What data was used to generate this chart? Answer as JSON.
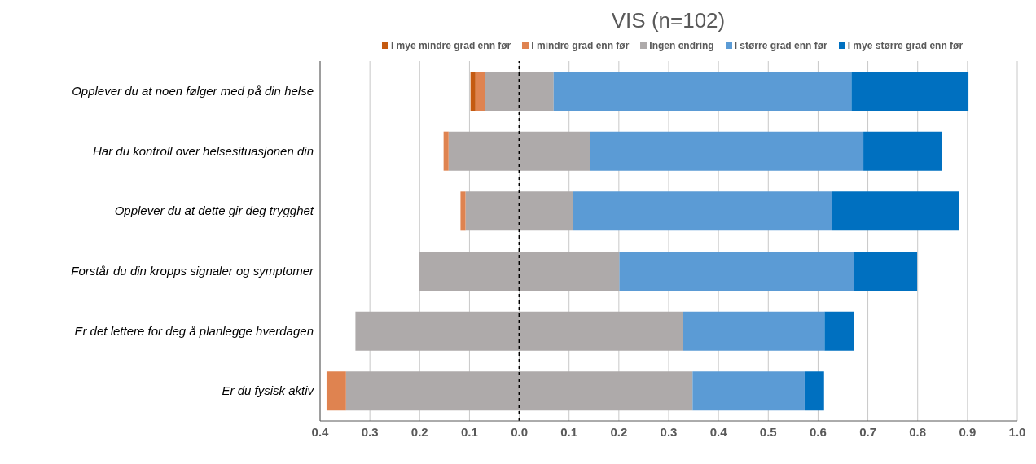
{
  "chart_data": {
    "type": "bar",
    "orientation": "horizontal",
    "stacked": true,
    "title": "VIS (n=102)",
    "categories": [
      "Opplever du at noen følger med på din helse",
      "Har du kontroll over helsesituasjonen din",
      "Opplever du at dette gir deg trygghet",
      "Forstår du din kropps signaler og symptomer",
      "Er det lettere for deg å planlegge hverdagen",
      "Er du fysisk aktiv"
    ],
    "series": [
      {
        "color": "#aeaaaa",
        "values": [
          -0.068,
          -0.142,
          -0.108,
          -0.201,
          -0.329,
          -0.348
        ]
      },
      {
        "name": "Ingen endring",
        "color": "#aeaaaa",
        "values": [
          0.069,
          0.142,
          0.108,
          0.201,
          0.329,
          0.348
        ]
      },
      {
        "name": "I mindre grad enn før",
        "color": "#df8350",
        "values": [
          -0.02,
          -0.01,
          -0.01,
          null,
          null,
          -0.039
        ]
      },
      {
        "name": "I mye mindre grad enn før",
        "color": "#c55a11",
        "values": [
          -0.01,
          null,
          null,
          null,
          null,
          null
        ]
      },
      {
        "name": "I større grad enn før",
        "color": "#5b9bd5",
        "values": [
          0.598,
          0.549,
          0.52,
          0.471,
          0.284,
          0.225
        ]
      },
      {
        "name": "I mye større grad enn før",
        "color": "#0070c0",
        "values": [
          0.235,
          0.157,
          0.255,
          0.127,
          0.059,
          0.039
        ]
      }
    ],
    "xlim": [
      -0.4,
      1.0
    ],
    "xticks": [
      {
        "value": -0.4,
        "label": "0.4"
      },
      {
        "value": -0.3,
        "label": "0.3"
      },
      {
        "value": -0.2,
        "label": "0.2"
      },
      {
        "value": -0.1,
        "label": "0.1"
      },
      {
        "value": 0,
        "label": "0.0"
      },
      {
        "value": 0.1,
        "label": "0.1"
      },
      {
        "value": 0.2,
        "label": "0.2"
      },
      {
        "value": 0.3,
        "label": "0.3"
      },
      {
        "value": 0.4,
        "label": "0.4"
      },
      {
        "value": 0.5,
        "label": "0.5"
      },
      {
        "value": 0.6,
        "label": "0.6"
      },
      {
        "value": 0.7,
        "label": "0.7"
      },
      {
        "value": 0.8,
        "label": "0.8"
      },
      {
        "value": 0.9,
        "label": "0.9"
      },
      {
        "value": 1.0,
        "label": "1.0"
      }
    ],
    "ref_lines": [
      {
        "axis": "x",
        "value": 0,
        "color": "#000000",
        "line_style": "dashed"
      }
    ],
    "grid": "x",
    "legend": "top"
  }
}
